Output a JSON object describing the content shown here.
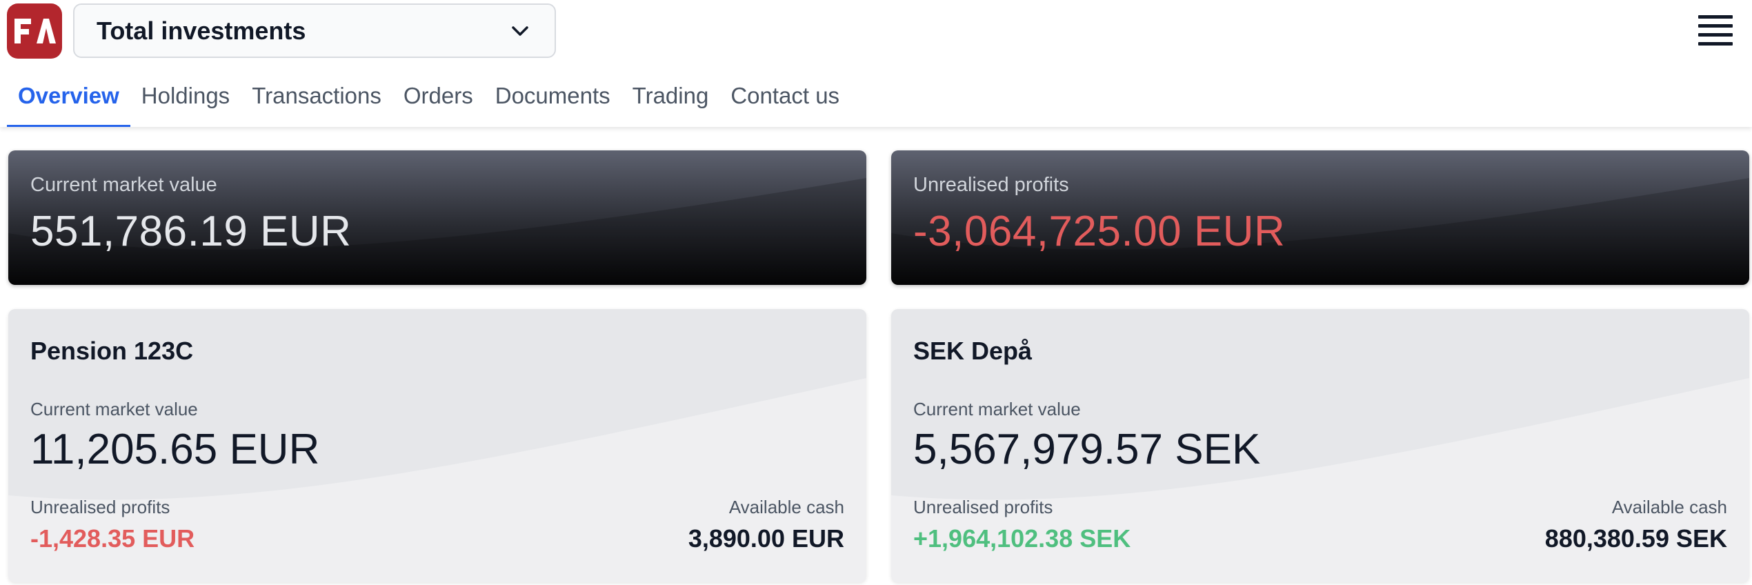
{
  "app": {
    "logo_text": "FA",
    "brand_color": "#b3262d"
  },
  "header": {
    "selector_label": "Total investments",
    "selector_icon": "chevron-down-icon",
    "menu_icon": "hamburger-menu-icon"
  },
  "tabs": [
    {
      "label": "Overview",
      "active": true
    },
    {
      "label": "Holdings",
      "active": false
    },
    {
      "label": "Transactions",
      "active": false
    },
    {
      "label": "Orders",
      "active": false
    },
    {
      "label": "Documents",
      "active": false
    },
    {
      "label": "Trading",
      "active": false
    },
    {
      "label": "Contact us",
      "active": false
    }
  ],
  "summary": {
    "market_value": {
      "caption": "Current market value",
      "value": "551,786.19 EUR"
    },
    "unrealised": {
      "caption": "Unrealised profits",
      "value": "-3,064,725.00 EUR"
    }
  },
  "portfolios": [
    {
      "name": "Pension 123C",
      "mv_caption": "Current market value",
      "market_value": "11,205.65 EUR",
      "pl_caption": "Unrealised profits",
      "unrealised": "-1,428.35 EUR",
      "cash_caption": "Available cash",
      "cash": "3,890.00 EUR"
    },
    {
      "name": "SEK Depå",
      "mv_caption": "Current market value",
      "market_value": "5,567,979.57 SEK",
      "pl_caption": "Unrealised profits",
      "unrealised": "+1,964,102.38 SEK",
      "cash_caption": "Available cash",
      "cash": "880,380.59 SEK"
    }
  ],
  "colors": {
    "accent": "#2563eb",
    "negative": "#e25c5c",
    "positive": "#4fbf7f"
  }
}
